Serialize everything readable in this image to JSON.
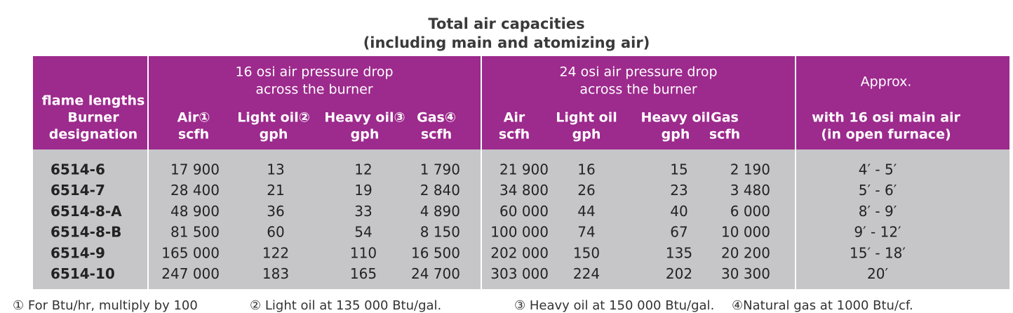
{
  "title": [
    "Total air capacities",
    "(including main and atomizing air)"
  ],
  "table": {
    "group_headers": [
      [
        "16 osi air pressure drop",
        "across the burner"
      ],
      [
        "24 osi air pressure drop",
        "across the burner"
      ],
      [
        "Approx."
      ]
    ],
    "column_headers": [
      [
        "flame lengths",
        "Burner",
        "designation"
      ],
      [
        "Air①",
        "scfh"
      ],
      [
        "Light oil②",
        "gph"
      ],
      [
        "Heavy oil③",
        "gph"
      ],
      [
        "Gas④",
        "scfh"
      ],
      [
        "Air",
        "scfh"
      ],
      [
        "Light oil",
        "gph"
      ],
      [
        "Heavy oil",
        "gph"
      ],
      [
        "Gas",
        "scfh"
      ],
      [
        "with 16 osi main air",
        "(in open furnace)"
      ]
    ],
    "rows": [
      [
        "6514-6",
        "17 900",
        "13",
        "12",
        "1 790",
        "21 900",
        "16",
        "15",
        "2 190",
        "4′ - 5′"
      ],
      [
        "6514-7",
        "28 400",
        "21",
        "19",
        "2 840",
        "34 800",
        "26",
        "23",
        "3 480",
        "5′ - 6′"
      ],
      [
        "6514-8-A",
        "48 900",
        "36",
        "33",
        "4 890",
        "60 000",
        "44",
        "40",
        "6 000",
        "8′ - 9′"
      ],
      [
        "6514-8-B",
        "81 500",
        "60",
        "54",
        "8 150",
        "100 000",
        "74",
        "67",
        "10 000",
        "9′ - 12′"
      ],
      [
        "6514-9",
        "165 000",
        "122",
        "110",
        "16 500",
        "202 000",
        "150",
        "135",
        "20 200",
        "15′ - 18′"
      ],
      [
        "6514-10",
        "247 000",
        "183",
        "165",
        "24 700",
        "303 000",
        "224",
        "202",
        "30 300",
        "20′"
      ]
    ]
  },
  "footnotes": [
    "① For Btu/hr, multiply by 100",
    "② Light oil at 135 000 Btu/gal.",
    "③ Heavy oil at 150 000 Btu/gal.",
    "④Natural gas at 1000 Btu/cf."
  ]
}
